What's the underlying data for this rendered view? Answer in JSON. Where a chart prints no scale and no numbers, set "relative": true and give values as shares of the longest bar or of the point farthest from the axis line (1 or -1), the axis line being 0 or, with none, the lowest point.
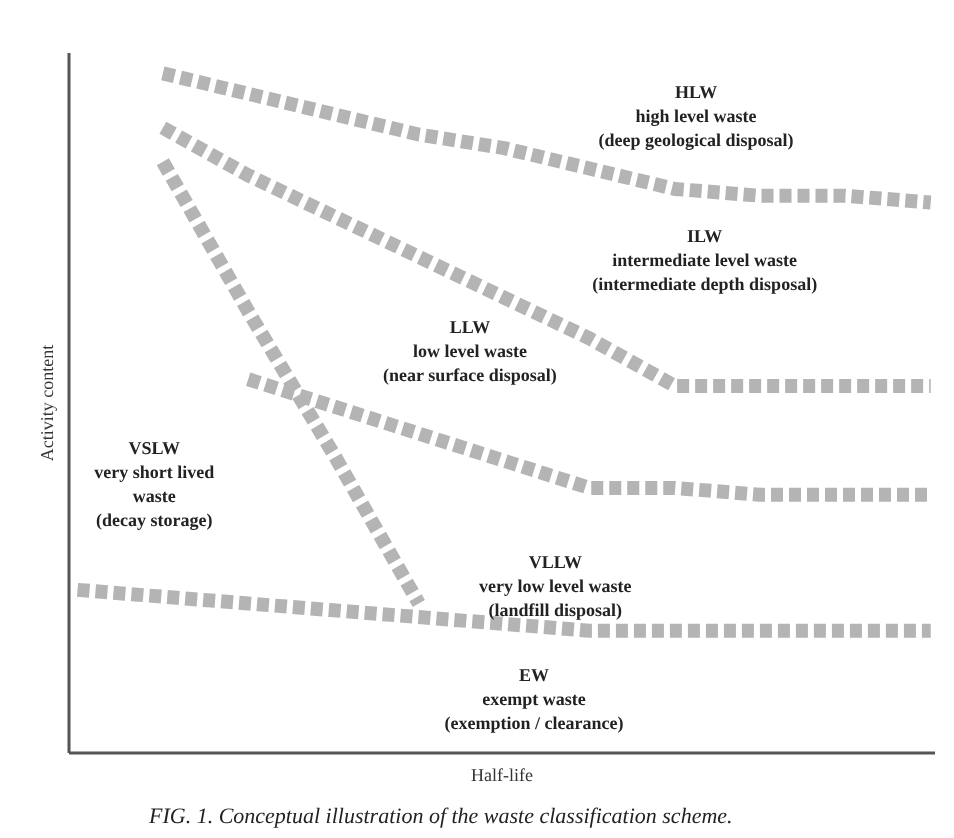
{
  "chart_data": {
    "type": "line",
    "relative": true,
    "title": "FIG. 1.  Conceptual illustration of the waste classification scheme.",
    "xlabel": "Half-life",
    "ylabel": "Activity content",
    "line_style": "dashed",
    "categories": [
      null,
      null,
      null,
      null,
      null,
      null,
      null,
      null,
      null,
      null,
      null
    ],
    "series": [
      {
        "color": "#b4b4b4",
        "values": [
          null,
          1.0,
          0.97,
          0.94,
          0.91,
          0.89,
          0.86,
          0.83,
          0.82,
          0.82,
          0.81
        ]
      },
      {
        "color": "#b4b4b4",
        "values": [
          null,
          0.92,
          0.85,
          0.79,
          0.73,
          0.67,
          0.61,
          0.54,
          0.54,
          0.54,
          0.54
        ]
      },
      {
        "color": "#b4b4b4",
        "values": [
          null,
          0.87,
          0.65,
          0.44,
          0.22,
          null,
          null,
          null,
          null,
          null,
          null
        ]
      },
      {
        "color": "#b4b4b4",
        "values": [
          null,
          null,
          0.55,
          0.51,
          0.47,
          0.43,
          0.39,
          0.39,
          0.38,
          0.38,
          0.38
        ]
      },
      {
        "color": "#b4b4b4",
        "values": [
          0.24,
          0.23,
          0.22,
          0.21,
          0.2,
          0.19,
          0.18,
          0.18,
          0.18,
          0.18,
          0.18
        ]
      }
    ],
    "annotations": [
      "HLW\nhigh level waste\n(deep geological disposal)",
      "ILW\nintermediate level waste\n(intermediate depth disposal)",
      "LLW\nlow level waste\n(near surface disposal)",
      "VSLW\nvery short lived\nwaste\n(decay storage)",
      "VLLW\nvery low level waste\n(landfill disposal)",
      "EW\nexempt waste\n(exemption / clearance)"
    ]
  }
}
